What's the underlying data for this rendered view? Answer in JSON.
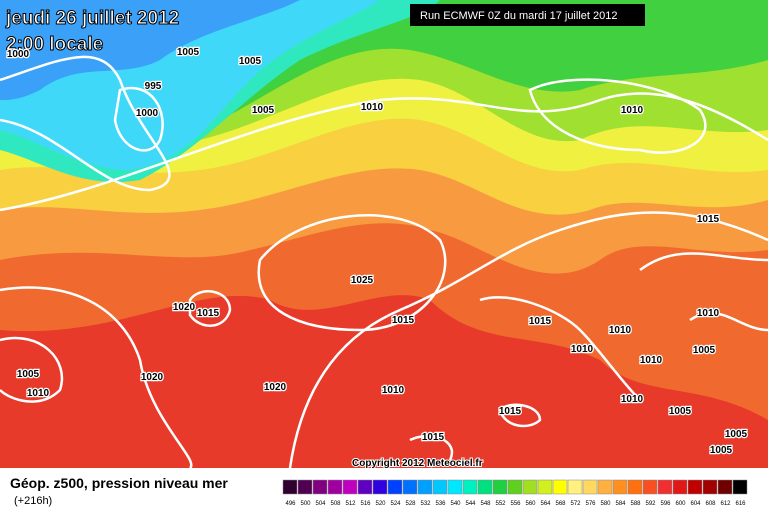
{
  "header": {
    "date": "jeudi 26 juillet 2012",
    "time": "2:00 locale",
    "run": "Run ECMWF 0Z du mardi 17 juillet 2012"
  },
  "isobar_labels": [
    "1000",
    "1005",
    "1005",
    "995",
    "1000",
    "1005",
    "1010",
    "1010",
    "1015",
    "1025",
    "1020",
    "1015",
    "1015",
    "1015",
    "1010",
    "1010",
    "1010",
    "1010",
    "1005",
    "1005",
    "1020",
    "1010",
    "1020",
    "1010",
    "1015",
    "1010",
    "1005",
    "1015",
    "1005",
    "1005"
  ],
  "copyright": "Copyright 2012 Meteociel.fr",
  "legend": {
    "title": "Géop. z500, pression niveau mer",
    "subtitle": "(+216h)",
    "scale": [
      496,
      500,
      504,
      508,
      512,
      516,
      520,
      524,
      528,
      532,
      536,
      540,
      544,
      548,
      552,
      556,
      560,
      564,
      568,
      572,
      576,
      580,
      584,
      588,
      592,
      596,
      600,
      604,
      608,
      612,
      616
    ],
    "colors": [
      "#300030",
      "#500050",
      "#800080",
      "#a000a0",
      "#c000c0",
      "#6000c0",
      "#3000e0",
      "#0040ff",
      "#0070ff",
      "#00a0ff",
      "#00c8ff",
      "#00e8ff",
      "#00f0c0",
      "#00e080",
      "#20d040",
      "#60d020",
      "#a0e020",
      "#d0f020",
      "#ffff00",
      "#fff080",
      "#ffd860",
      "#ffb040",
      "#ff9020",
      "#ff7010",
      "#f85020",
      "#f03030",
      "#e01818",
      "#c00000",
      "#a00000",
      "#700000",
      "#000000"
    ]
  }
}
